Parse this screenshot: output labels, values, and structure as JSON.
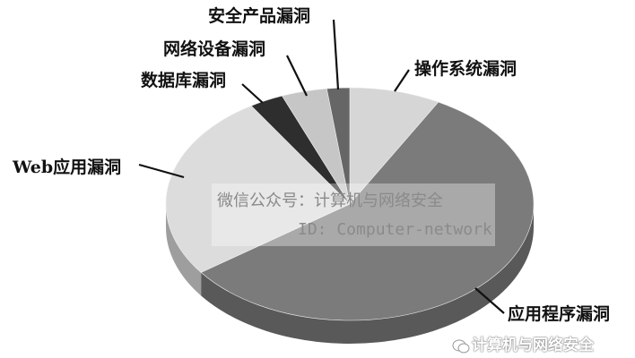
{
  "chart_data": {
    "type": "pie",
    "style": "3d",
    "title": "",
    "slices": [
      {
        "label": "操作系统漏洞",
        "value": 8,
        "color": "#d6d6d6"
      },
      {
        "label": "应用程序漏洞",
        "value": 57,
        "color": "#7b7b7b"
      },
      {
        "label": "Web应用漏洞",
        "value": 26,
        "color": "#dcdcdc"
      },
      {
        "label": "数据库漏洞",
        "value": 3,
        "color": "#2e2e2e"
      },
      {
        "label": "网络设备漏洞",
        "value": 4,
        "color": "#c6c6c6"
      },
      {
        "label": "安全产品漏洞",
        "value": 2,
        "color": "#666666"
      }
    ],
    "legend": "none (leader-line labels)"
  },
  "watermark": {
    "line1": "微信公众号：计算机与网络安全",
    "line2": "ID: Computer-network",
    "footer": "计算机与网络安全"
  }
}
